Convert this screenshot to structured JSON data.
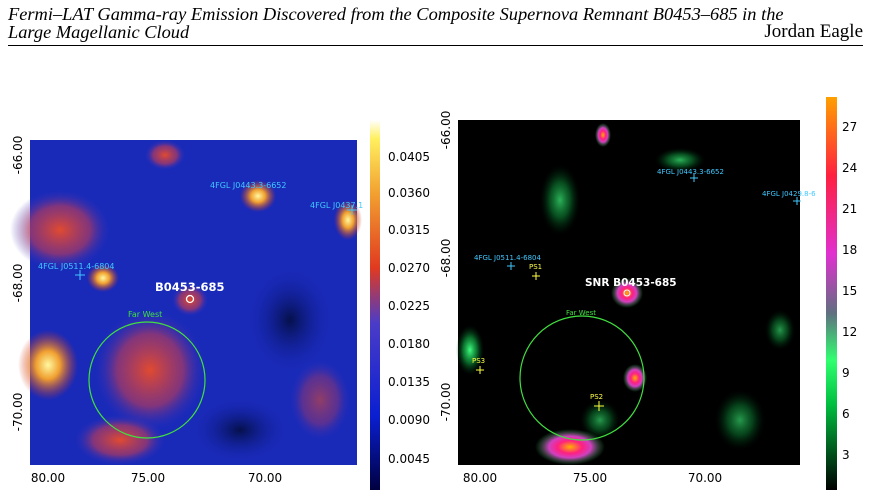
{
  "header": {
    "title_line1": "Fermi–LAT Gamma-ray Emission Discovered from the Composite Supernova Remnant B0453–685 in the",
    "title_line2": "Large Magellanic Cloud",
    "author": "Jordan Eagle"
  },
  "figure": {
    "left": {
      "y_ticks": [
        "-66.00",
        "-68.00",
        "-70.00"
      ],
      "x_ticks": [
        "80.00",
        "75.00",
        "70.00"
      ],
      "colorbar_ticks": [
        "0.0405",
        "0.0360",
        "0.0315",
        "0.0270",
        "0.0225",
        "0.0180",
        "0.0135",
        "0.0090",
        "0.0045"
      ],
      "labels": [
        "4FGL J0443.3-6652",
        "4FGL J0437.1",
        "4FGL J0511.4-6804",
        "B0453-685",
        "Far West"
      ]
    },
    "right": {
      "y_ticks": [
        "-66.00",
        "-68.00",
        "-70.00"
      ],
      "x_ticks": [
        "80.00",
        "75.00",
        "70.00"
      ],
      "colorbar_ticks": [
        "27",
        "24",
        "21",
        "18",
        "15",
        "12",
        "9",
        "6",
        "3"
      ],
      "labels": [
        "4FGL J0443.3-6652",
        "4FGL J0429.8-6",
        "4FGL J0511.4-6804",
        "PS1",
        "SNR B0453-685",
        "Far West",
        "PS3",
        "PS2"
      ]
    }
  }
}
